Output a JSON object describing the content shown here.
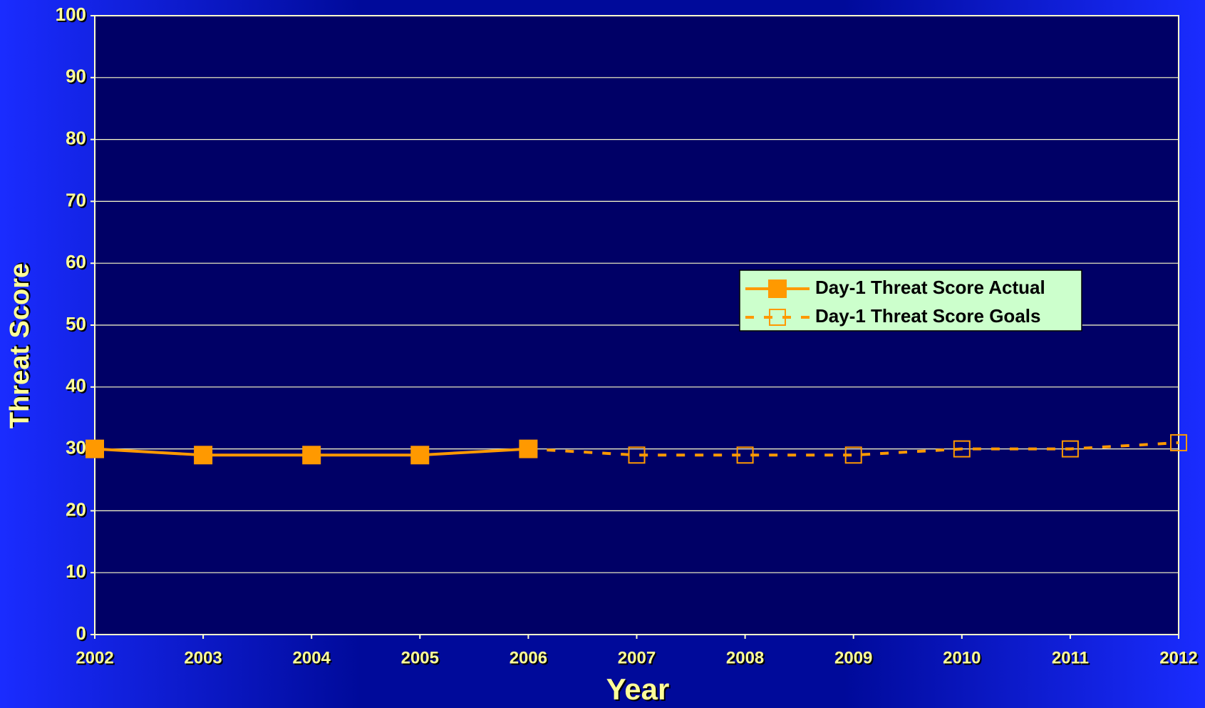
{
  "chart_data": {
    "type": "line",
    "x_label": "Year",
    "y_label": "Threat Score",
    "x": [
      2002,
      2003,
      2004,
      2005,
      2006,
      2007,
      2008,
      2009,
      2010,
      2011,
      2012
    ],
    "series": [
      {
        "name": "Day-1 Threat Score Goals",
        "color": "#ff9900",
        "style": "dashed",
        "marker": "hollow-square",
        "values": [
          null,
          null,
          null,
          null,
          30,
          29,
          29,
          29,
          30,
          30,
          31
        ]
      },
      {
        "name": "Day-1 Threat Score Actual",
        "color": "#ff9900",
        "style": "solid",
        "marker": "filled-square",
        "values": [
          30,
          29,
          29,
          29,
          30,
          null,
          null,
          null,
          null,
          null,
          null
        ]
      }
    ],
    "xlim": [
      2002,
      2012
    ],
    "xticks": [
      2002,
      2003,
      2004,
      2005,
      2006,
      2007,
      2008,
      2009,
      2010,
      2011,
      2012
    ],
    "ylim": [
      0,
      100
    ],
    "yticks": [
      0,
      10,
      20,
      30,
      40,
      50,
      60,
      70,
      80,
      90,
      100
    ],
    "grid": true
  }
}
